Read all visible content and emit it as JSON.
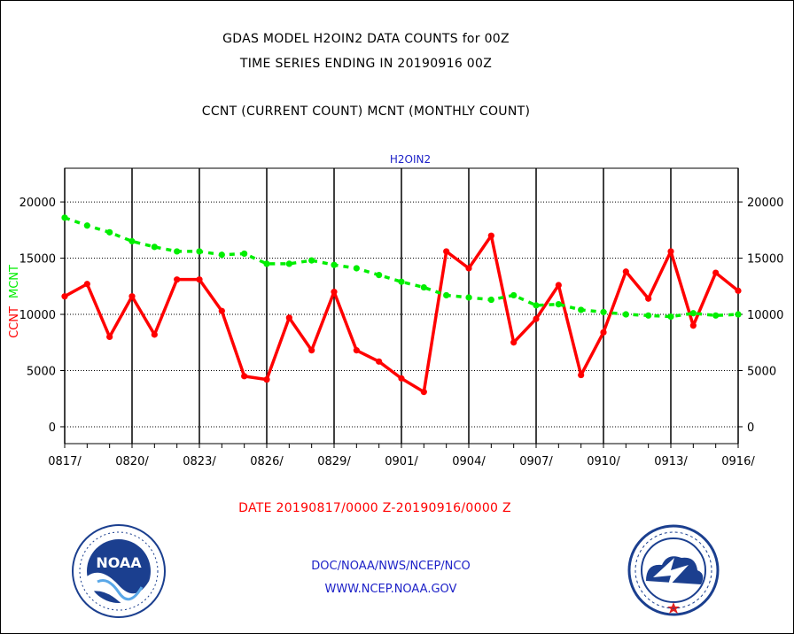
{
  "header": {
    "title": "GDAS MODEL H2OIN2 DATA COUNTS for 00Z",
    "subtitle": "TIME SERIES ENDING IN 20190916 00Z",
    "legend_text": "CCNT (CURRENT COUNT) MCNT (MONTHLY COUNT)"
  },
  "footer": {
    "date_range": "DATE 20190817/0000 Z-20190916/0000 Z",
    "org_line": "DOC/NOAA/NWS/NCEP/NCO",
    "url_line": "WWW.NCEP.NOAA.GOV"
  },
  "logos": {
    "noaa": {
      "name": "noaa-logo-icon",
      "text": "NOAA"
    },
    "nws": {
      "name": "nws-logo-icon"
    }
  },
  "colors": {
    "ccnt": "#ff0000",
    "mcnt": "#00ee00",
    "footer_text": "#1e22c8",
    "grid": "#000000"
  },
  "chart_data": {
    "type": "line",
    "title": "H2OIN2",
    "ylabel_left_red": "CCNT",
    "ylabel_left_green": "MCNT",
    "x": [
      "0817",
      "0818",
      "0819",
      "0820",
      "0821",
      "0822",
      "0823",
      "0824",
      "0825",
      "0826",
      "0827",
      "0828",
      "0829",
      "0830",
      "0831",
      "0901",
      "0902",
      "0903",
      "0904",
      "0905",
      "0906",
      "0907",
      "0908",
      "0909",
      "0910",
      "0911",
      "0912",
      "0913",
      "0914",
      "0915",
      "0916"
    ],
    "xtick_labels": [
      "0817/",
      "0820/",
      "0823/",
      "0826/",
      "0829/",
      "0901/",
      "0904/",
      "0907/",
      "0910/",
      "0913/",
      "0916/"
    ],
    "xtick_index": [
      0,
      3,
      6,
      9,
      12,
      15,
      18,
      21,
      24,
      27,
      30
    ],
    "yticks": [
      0,
      5000,
      10000,
      15000,
      20000
    ],
    "ytick_labels": [
      "0",
      "5000",
      "10000",
      "15000",
      "20000"
    ],
    "ylim": [
      -1500,
      23000
    ],
    "grid": true,
    "series": [
      {
        "name": "CCNT",
        "color": "#ff0000",
        "style": "solid",
        "values": [
          11600,
          12700,
          8000,
          11600,
          8200,
          13100,
          13100,
          10300,
          4500,
          4200,
          9700,
          6800,
          12000,
          6800,
          5800,
          4300,
          3100,
          15600,
          14100,
          17000,
          7500,
          9600,
          12600,
          4600,
          8400,
          13800,
          11400,
          15600,
          9000,
          13700,
          12100
        ]
      },
      {
        "name": "MCNT",
        "color": "#00ee00",
        "style": "dashed",
        "values": [
          18600,
          17900,
          17300,
          16500,
          16000,
          15600,
          15600,
          15300,
          15400,
          14500,
          14500,
          14800,
          14400,
          14100,
          13500,
          12900,
          12400,
          11700,
          11500,
          11300,
          11700,
          10800,
          10900,
          10400,
          10200,
          10000,
          9900,
          9800,
          10100,
          9900,
          10000
        ]
      }
    ]
  }
}
